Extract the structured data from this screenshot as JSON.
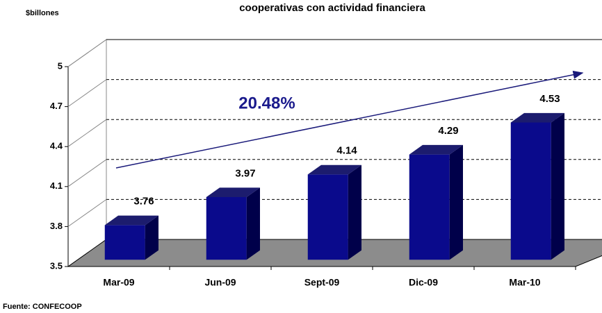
{
  "chart_data": {
    "type": "bar3d",
    "title": "cooperativas con actividad financiera",
    "y_label": "$billones",
    "annotation": "20.48%",
    "source": "Fuente: CONFECOOP",
    "categories": [
      "Mar-09",
      "Jun-09",
      "Sept-09",
      "Dic-09",
      "Mar-10"
    ],
    "values": [
      3.76,
      3.97,
      4.14,
      4.29,
      4.53
    ],
    "color": "#0a0a8c",
    "ylim": [
      3.5,
      5
    ],
    "yticks": [
      3.5,
      3.8,
      4.1,
      4.4,
      4.7,
      5
    ],
    "grid": true
  }
}
